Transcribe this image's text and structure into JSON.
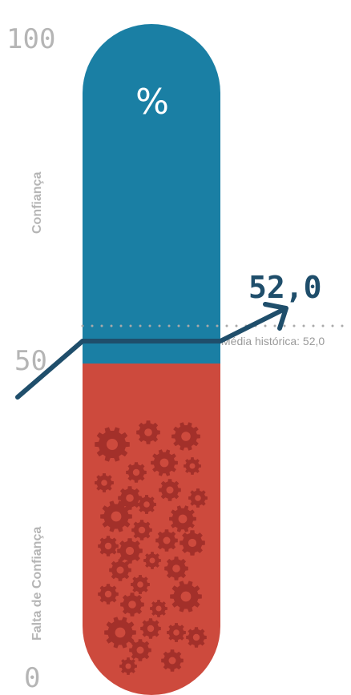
{
  "chart_data": {
    "type": "bar",
    "ylim": [
      0,
      100
    ],
    "value": 52.0,
    "value_label": "52,0",
    "historical_average": 52.0,
    "historical_label": "Média histórica: 52,0",
    "unit_label": "%",
    "ticks": [
      "100",
      "50",
      "0"
    ],
    "upper_label": "Confiança",
    "lower_label": "Falta de Confiança",
    "colors": {
      "upper": "#1a7fa4",
      "lower": "#cd4a3d",
      "gears": "#a3302a",
      "trend": "#1f4e6b",
      "ticks": "#b5b5b5"
    }
  }
}
